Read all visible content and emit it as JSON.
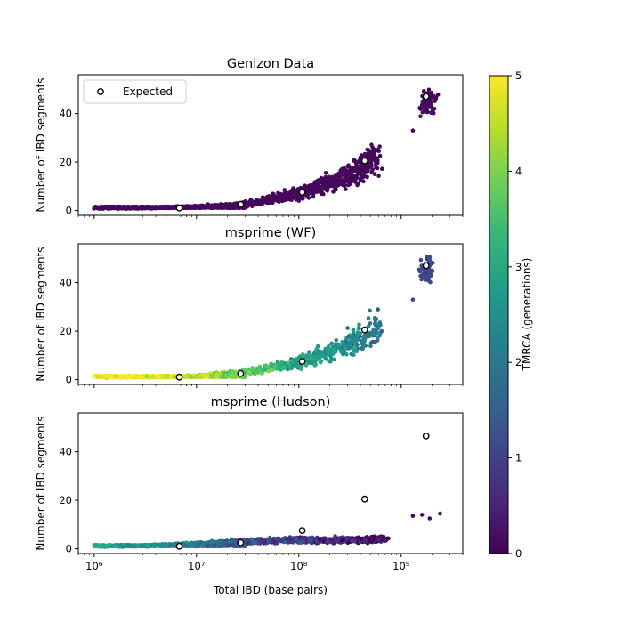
{
  "chart_data": [
    {
      "type": "scatter",
      "title": "Genizon Data",
      "xlabel": "",
      "ylabel": "Number of IBD segments",
      "xscale": "log",
      "xlim": [
        700000,
        4000000000
      ],
      "ylim": [
        -2,
        56
      ],
      "yticks": [
        0,
        20,
        40
      ],
      "legend": {
        "position": "top-left",
        "entries": [
          "Expected"
        ]
      },
      "color_by": "TMRCA (generations)",
      "cloud": [
        {
          "x": 1000000,
          "y": 1,
          "tmrca": 0.1
        },
        {
          "x": 3000000,
          "y": 1,
          "tmrca": 0.1
        },
        {
          "x": 10000000,
          "y": 1.5,
          "tmrca": 0.1
        },
        {
          "x": 30000000,
          "y": 2.5,
          "tmrca": 0.1
        },
        {
          "x": 100000000,
          "y": 7,
          "tmrca": 0.1
        },
        {
          "x": 300000000,
          "y": 14,
          "tmrca": 0.1
        },
        {
          "x": 600000000,
          "y": 22,
          "tmrca": 0.1
        },
        {
          "x": 1800000000,
          "y": 45,
          "tmrca": 0.1
        }
      ],
      "expected": [
        {
          "x": 6800000,
          "y": 1
        },
        {
          "x": 27000000,
          "y": 2.5
        },
        {
          "x": 108000000,
          "y": 7.5
        },
        {
          "x": 440000000,
          "y": 20.5
        },
        {
          "x": 1750000000,
          "y": 47
        }
      ]
    },
    {
      "type": "scatter",
      "title": "msprime (WF)",
      "xlabel": "",
      "ylabel": "Number of IBD segments",
      "xscale": "log",
      "xlim": [
        700000,
        4000000000
      ],
      "ylim": [
        -2,
        56
      ],
      "yticks": [
        0,
        20,
        40
      ],
      "color_by": "TMRCA (generations)",
      "cloud": [
        {
          "x": 1000000,
          "y": 1,
          "tmrca": 5
        },
        {
          "x": 3000000,
          "y": 1,
          "tmrca": 5
        },
        {
          "x": 10000000,
          "y": 1.5,
          "tmrca": 4.6
        },
        {
          "x": 30000000,
          "y": 3,
          "tmrca": 3.8
        },
        {
          "x": 100000000,
          "y": 7,
          "tmrca": 3
        },
        {
          "x": 300000000,
          "y": 14,
          "tmrca": 2.5
        },
        {
          "x": 600000000,
          "y": 22,
          "tmrca": 1.9
        },
        {
          "x": 1800000000,
          "y": 45,
          "tmrca": 1.1
        }
      ],
      "expected": [
        {
          "x": 6800000,
          "y": 1
        },
        {
          "x": 27000000,
          "y": 2.5
        },
        {
          "x": 108000000,
          "y": 7.5
        },
        {
          "x": 440000000,
          "y": 20.5
        },
        {
          "x": 1750000000,
          "y": 47
        }
      ]
    },
    {
      "type": "scatter",
      "title": "msprime (Hudson)",
      "xlabel": "Total IBD (base pairs)",
      "ylabel": "Number of IBD segments",
      "xscale": "log",
      "xlim": [
        700000,
        4000000000
      ],
      "ylim": [
        -2,
        56
      ],
      "yticks": [
        0,
        20,
        40
      ],
      "xticks": [
        {
          "value": 1000000,
          "label": "10⁶"
        },
        {
          "value": 10000000,
          "label": "10⁷"
        },
        {
          "value": 100000000,
          "label": "10⁸"
        },
        {
          "value": 1000000000,
          "label": "10⁹"
        }
      ],
      "color_by": "TMRCA (generations)",
      "cloud": [
        {
          "x": 1000000,
          "y": 1,
          "tmrca": 3
        },
        {
          "x": 3000000,
          "y": 1.2,
          "tmrca": 2.5
        },
        {
          "x": 10000000,
          "y": 2,
          "tmrca": 2
        },
        {
          "x": 30000000,
          "y": 3,
          "tmrca": 1.2
        },
        {
          "x": 100000000,
          "y": 3.5,
          "tmrca": 0.8
        },
        {
          "x": 300000000,
          "y": 3.5,
          "tmrca": 0.4
        },
        {
          "x": 700000000,
          "y": 4,
          "tmrca": 0.2
        }
      ],
      "outliers": [
        {
          "x": 1300000000,
          "y": 13.5,
          "tmrca": 0.1
        },
        {
          "x": 1600000000,
          "y": 14,
          "tmrca": 0.1
        },
        {
          "x": 1900000000,
          "y": 12.5,
          "tmrca": 0.1
        },
        {
          "x": 2400000000,
          "y": 14.5,
          "tmrca": 0.1
        }
      ],
      "expected": [
        {
          "x": 6800000,
          "y": 1
        },
        {
          "x": 27000000,
          "y": 2.5
        },
        {
          "x": 108000000,
          "y": 7.5
        },
        {
          "x": 440000000,
          "y": 20.5
        },
        {
          "x": 1750000000,
          "y": 46.5
        }
      ]
    }
  ],
  "colorbar": {
    "label": "TMRCA (generations)",
    "min": 0,
    "max": 5,
    "ticks": [
      "0",
      "1",
      "2",
      "3",
      "4",
      "5"
    ],
    "colormap": "viridis",
    "colors": [
      "#440154",
      "#482878",
      "#3e4989",
      "#31688e",
      "#26828e",
      "#1f9e89",
      "#35b779",
      "#6ece58",
      "#b5de2b",
      "#fde725"
    ]
  }
}
